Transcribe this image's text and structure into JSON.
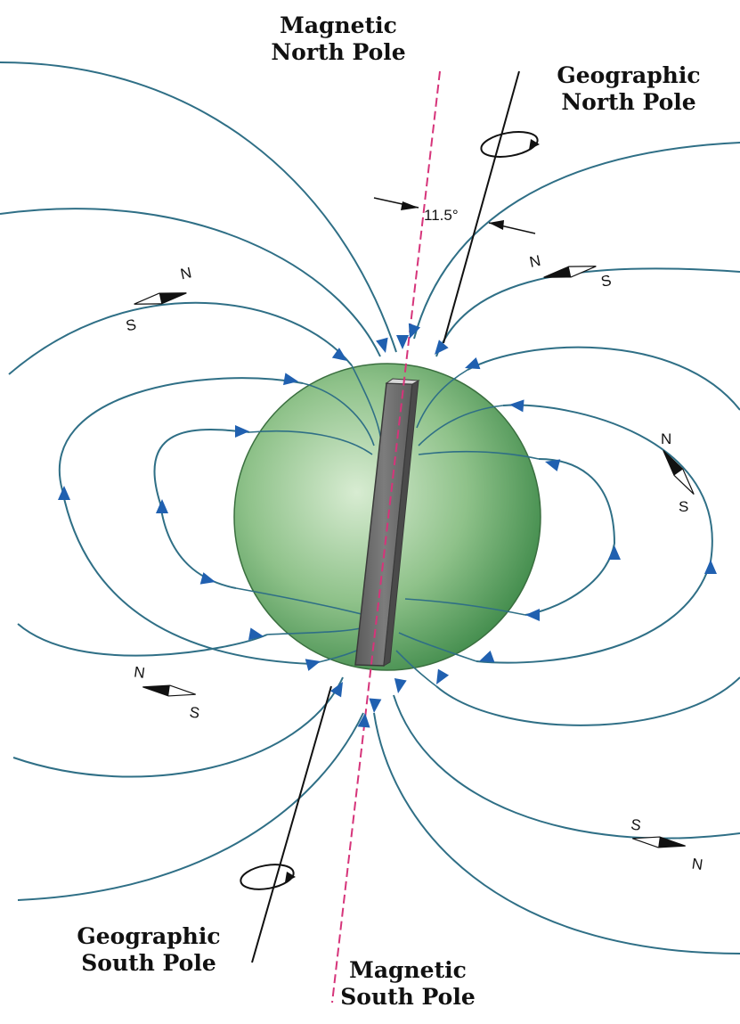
{
  "labels": {
    "magnetic_north": [
      "Magnetic",
      "North Pole"
    ],
    "geographic_north": [
      "Geographic",
      "North Pole"
    ],
    "geographic_south": [
      "Geographic",
      "South Pole"
    ],
    "magnetic_south": [
      "Magnetic",
      "South Pole"
    ],
    "angle": "11.5°"
  },
  "compasses": [
    {
      "first": "S",
      "second": "N"
    },
    {
      "first": "N",
      "second": "S"
    },
    {
      "first": "N",
      "second": "S"
    },
    {
      "first": "N",
      "second": "S"
    },
    {
      "first": "S",
      "second": "N"
    }
  ],
  "colors": {
    "field_line": "#2f6f86",
    "arrow": "#2060b0",
    "earth_light": "#d8ecd2",
    "earth_mid": "#8fc28a",
    "earth_dark": "#3f8a4a",
    "magnet": "#6e6e6e",
    "magnetic_axis": "#d6347a",
    "geographic_axis": "#111111"
  }
}
